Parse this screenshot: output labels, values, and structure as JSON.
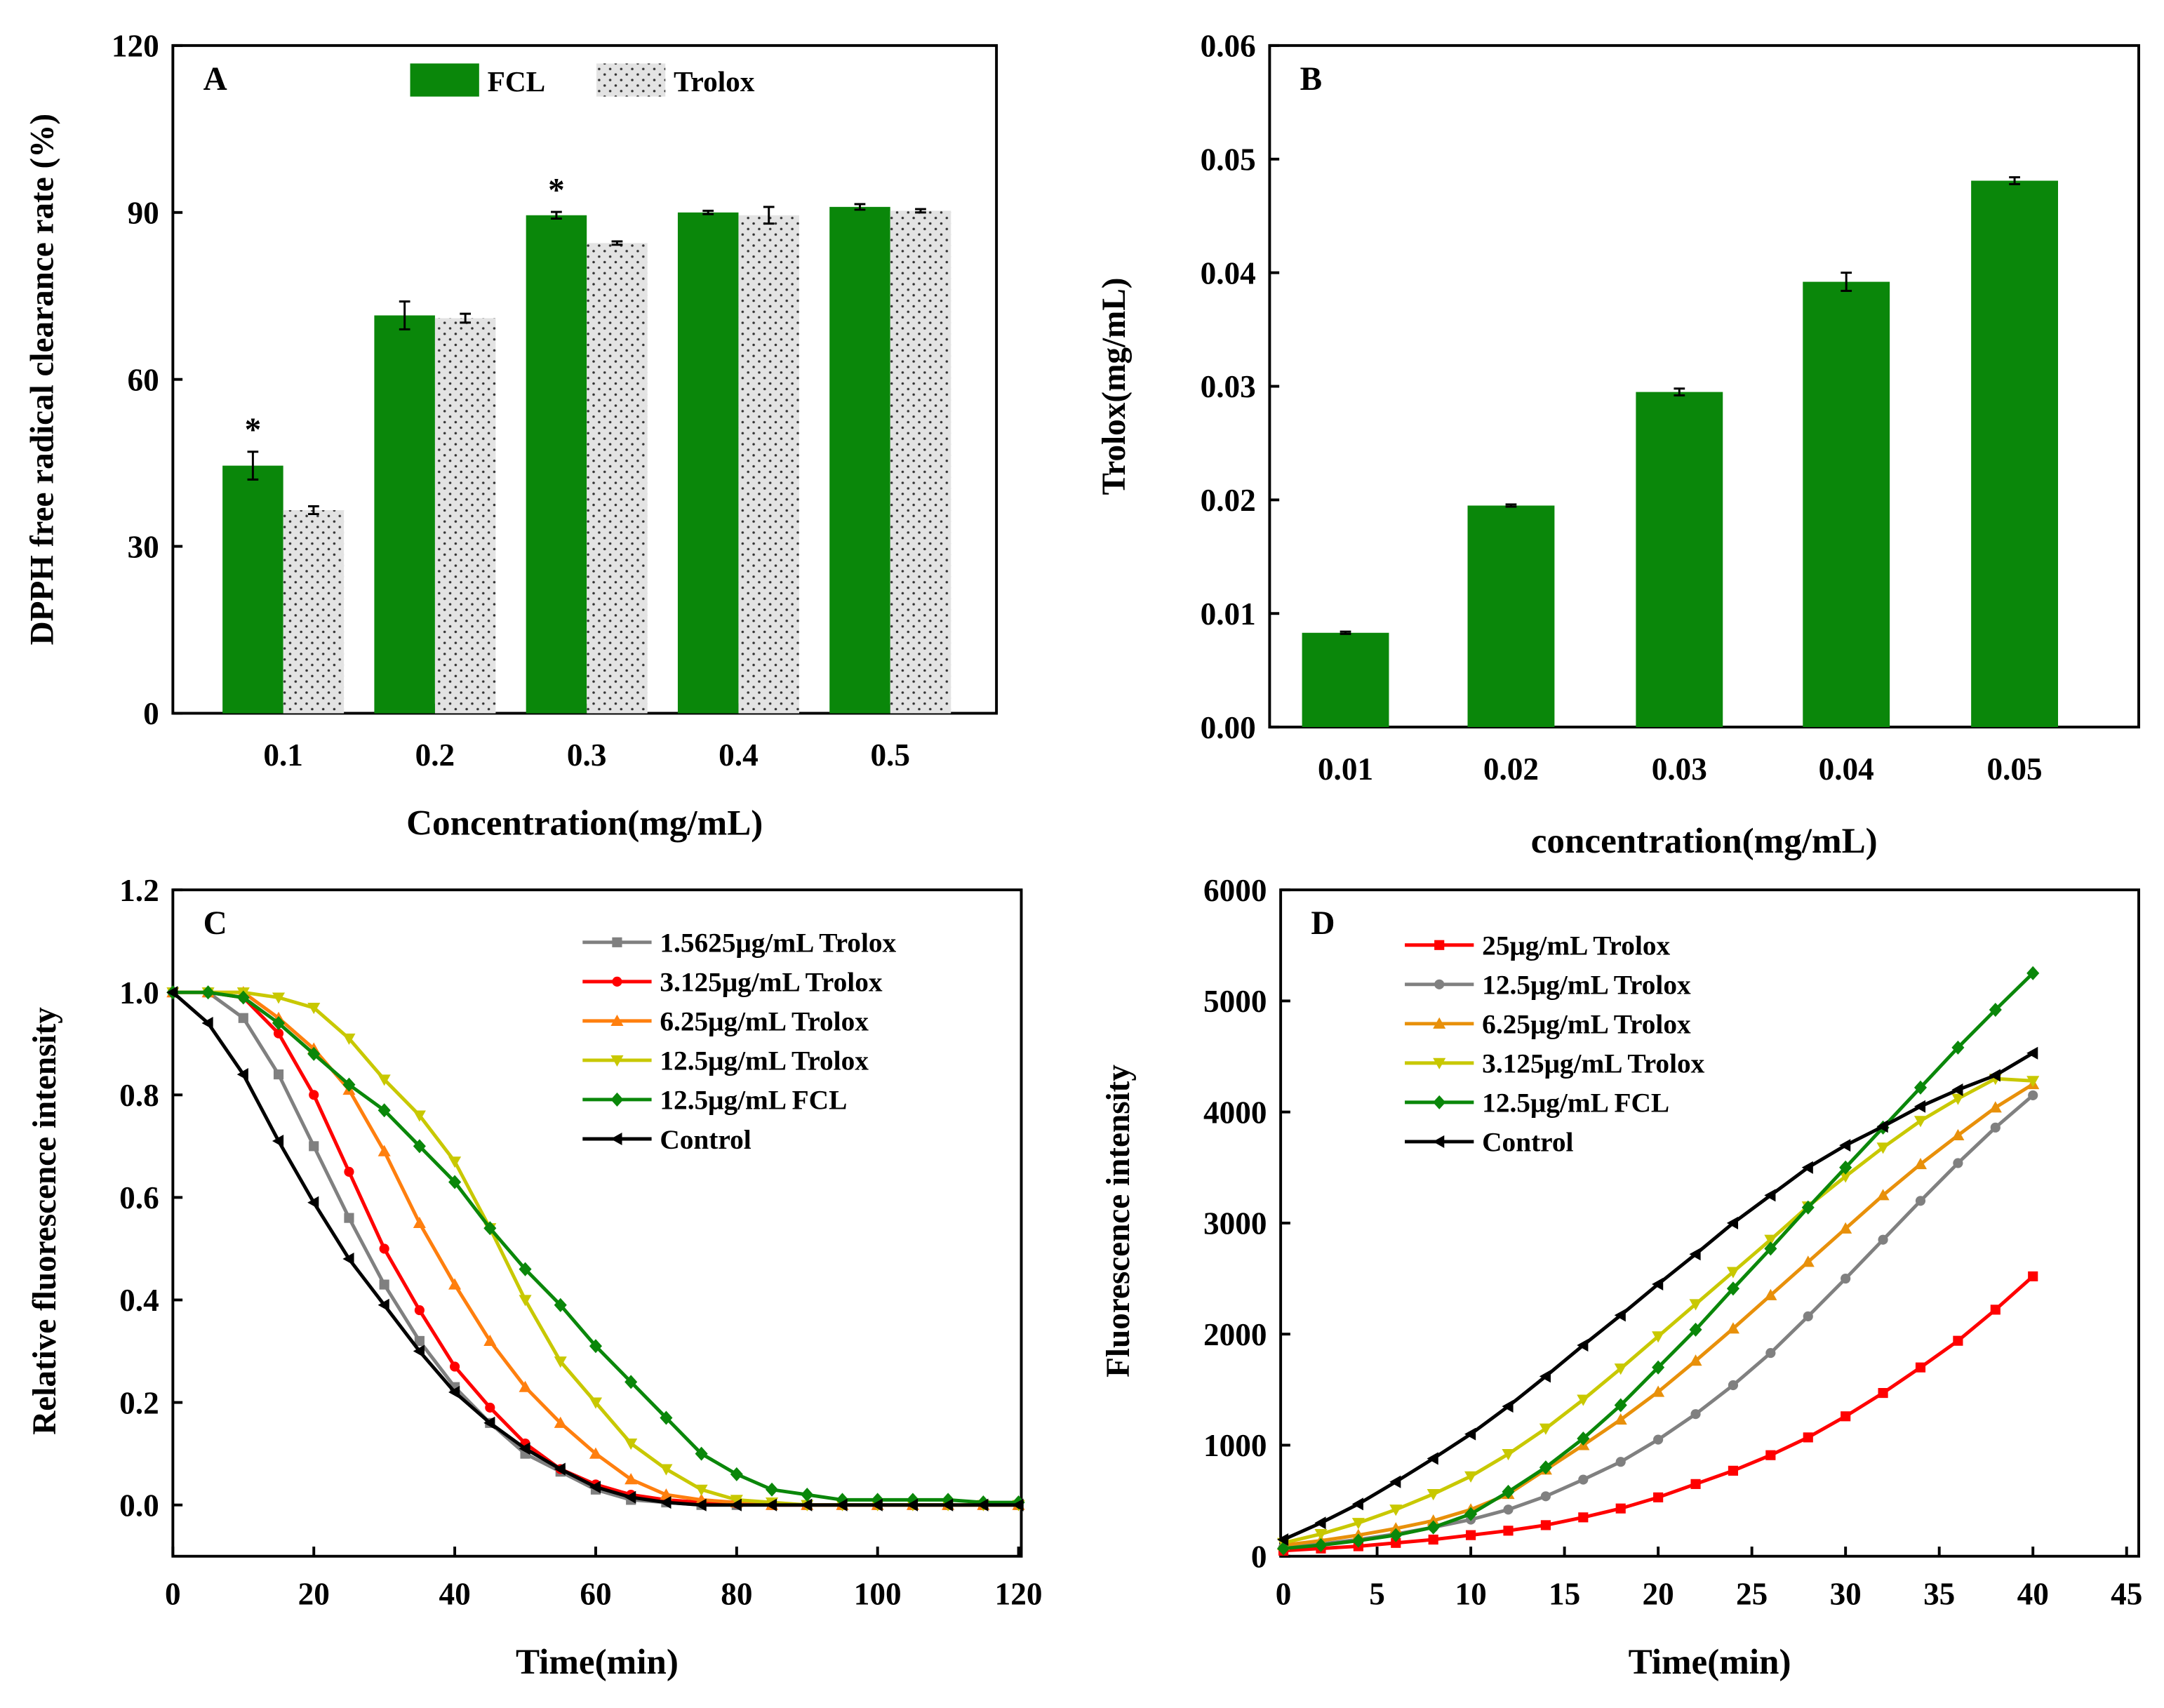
{
  "colors": {
    "fcl_bar": "#0a870a",
    "trolox_bar": "#e3e3e3"
  },
  "chart_data": [
    {
      "id": "A",
      "type": "bar",
      "panel_label": "A",
      "categories": [
        "0.1",
        "0.2",
        "0.3",
        "0.4",
        "0.5"
      ],
      "xlabel": "Concentration(mg/mL)",
      "ylabel": "DPPH free radical clearance rate (%)",
      "ylim": [
        0,
        120
      ],
      "yticks": [
        0,
        30,
        60,
        90,
        120
      ],
      "legend_position": "top-center",
      "series": [
        {
          "name": "FCL",
          "color": "#0a870a",
          "values": [
            44.5,
            71.5,
            89.5,
            90.0,
            91.0
          ],
          "errors": [
            2.5,
            2.5,
            0.6,
            0.3,
            0.5
          ]
        },
        {
          "name": "Trolox",
          "color": "#e3e3e3",
          "pattern": "dots",
          "values": [
            36.5,
            71.0,
            84.5,
            89.5,
            90.3
          ],
          "errors": [
            0.7,
            0.8,
            0.3,
            1.5,
            0.3
          ]
        }
      ],
      "annotations": [
        {
          "category": "0.1",
          "text": "*"
        },
        {
          "category": "0.3",
          "text": "*"
        }
      ]
    },
    {
      "id": "B",
      "type": "bar",
      "panel_label": "B",
      "categories": [
        "0.01",
        "0.02",
        "0.03",
        "0.04",
        "0.05"
      ],
      "xlabel": "concentration(mg/mL)",
      "ylabel": "Trolox(mg/mL)",
      "ylim": [
        0,
        0.06
      ],
      "yticks": [
        "0.00",
        "0.01",
        "0.02",
        "0.03",
        "0.04",
        "0.05",
        "0.06"
      ],
      "series": [
        {
          "name": "Trolox",
          "color": "#0a870a",
          "values": [
            0.0083,
            0.0195,
            0.0295,
            0.0392,
            0.0481
          ],
          "errors": [
            0.0001,
            0.0001,
            0.0003,
            0.0008,
            0.0003
          ]
        }
      ]
    },
    {
      "id": "C",
      "type": "line",
      "panel_label": "C",
      "xlabel": "Time(min)",
      "ylabel": "Relative fluorescence intensity",
      "xlim": [
        0,
        120
      ],
      "ylim": [
        -0.1,
        1.2
      ],
      "xticks": [
        0,
        20,
        40,
        60,
        80,
        100,
        120
      ],
      "yticks": [
        "0.0",
        "0.2",
        "0.4",
        "0.6",
        "0.8",
        "1.0",
        "1.2"
      ],
      "x_step": 5,
      "legend_position": "top-right",
      "series": [
        {
          "name": "1.5625μg/mL  Trolox",
          "color": "#808080",
          "marker": "square",
          "values": [
            1.0,
            1.0,
            0.95,
            0.84,
            0.7,
            0.56,
            0.43,
            0.32,
            0.23,
            0.16,
            0.1,
            0.065,
            0.03,
            0.01,
            0.005,
            0,
            0,
            0,
            0,
            0,
            0,
            0,
            0,
            0,
            0
          ]
        },
        {
          "name": "3.125μg/mL  Trolox",
          "color": "#ff0000",
          "marker": "circle",
          "values": [
            1.0,
            1.0,
            0.99,
            0.92,
            0.8,
            0.65,
            0.5,
            0.38,
            0.27,
            0.19,
            0.12,
            0.07,
            0.04,
            0.02,
            0.01,
            0.005,
            0.003,
            0,
            0,
            0,
            0,
            0,
            0,
            0,
            0
          ]
        },
        {
          "name": "6.25μg/mL Trolox",
          "color": "#ff7f0e",
          "marker": "triangle-up",
          "values": [
            1.0,
            1.0,
            1.0,
            0.95,
            0.89,
            0.81,
            0.69,
            0.55,
            0.43,
            0.32,
            0.23,
            0.16,
            0.1,
            0.05,
            0.02,
            0.01,
            0.005,
            0,
            0,
            0,
            0,
            0,
            0,
            0,
            0
          ]
        },
        {
          "name": "12.5μg/mL Trolox",
          "color": "#c8c800",
          "marker": "triangle-down",
          "values": [
            1.0,
            1.0,
            1.0,
            0.99,
            0.97,
            0.91,
            0.83,
            0.76,
            0.67,
            0.54,
            0.4,
            0.28,
            0.2,
            0.12,
            0.07,
            0.03,
            0.01,
            0.005,
            0,
            0,
            0,
            0,
            0,
            0,
            0
          ]
        },
        {
          "name": "12.5μg/mL FCL",
          "color": "#0a870a",
          "marker": "diamond",
          "values": [
            1.0,
            1.0,
            0.99,
            0.94,
            0.88,
            0.82,
            0.77,
            0.7,
            0.63,
            0.54,
            0.46,
            0.39,
            0.31,
            0.24,
            0.17,
            0.1,
            0.06,
            0.03,
            0.02,
            0.01,
            0.01,
            0.01,
            0.01,
            0.005,
            0.005
          ]
        },
        {
          "name": "Control",
          "color": "#000000",
          "marker": "triangle-left",
          "values": [
            1.0,
            0.94,
            0.84,
            0.71,
            0.59,
            0.48,
            0.39,
            0.3,
            0.22,
            0.16,
            0.11,
            0.07,
            0.035,
            0.015,
            0.005,
            0,
            0,
            0,
            0,
            0,
            0,
            0,
            0,
            0,
            0
          ]
        }
      ]
    },
    {
      "id": "D",
      "type": "line",
      "panel_label": "D",
      "xlabel": "Time(min)",
      "ylabel": "Fluorescence intensity",
      "xlim": [
        0,
        45.5
      ],
      "ylim": [
        0,
        6000
      ],
      "xticks": [
        0,
        5,
        10,
        15,
        20,
        25,
        30,
        35,
        40,
        45
      ],
      "yticks": [
        "0",
        "1000",
        "2000",
        "3000",
        "4000",
        "5000",
        "6000"
      ],
      "x_step": 2,
      "legend_position": "top-left",
      "series": [
        {
          "name": "25μg/mL Trolox",
          "color": "#ff0000",
          "marker": "square",
          "values": [
            50,
            70,
            90,
            120,
            150,
            190,
            230,
            280,
            350,
            430,
            530,
            650,
            770,
            910,
            1070,
            1260,
            1470,
            1700,
            1940,
            2220,
            2520
          ]
        },
        {
          "name": "12.5μg/mL Trolox",
          "color": "#808080",
          "marker": "circle",
          "values": [
            80,
            110,
            150,
            200,
            260,
            330,
            420,
            540,
            690,
            850,
            1050,
            1280,
            1540,
            1830,
            2160,
            2500,
            2850,
            3200,
            3540,
            3860,
            4150
          ]
        },
        {
          "name": "6.25μg/mL Trolox",
          "color": "#e8900a",
          "marker": "triangle-up",
          "values": [
            100,
            140,
            190,
            250,
            320,
            420,
            560,
            780,
            1000,
            1230,
            1480,
            1760,
            2050,
            2350,
            2650,
            2950,
            3250,
            3530,
            3790,
            4040,
            4250
          ]
        },
        {
          "name": "3.125μg/mL  Trolox",
          "color": "#c8c800",
          "marker": "triangle-down",
          "values": [
            120,
            200,
            300,
            420,
            560,
            720,
            920,
            1150,
            1410,
            1690,
            1980,
            2270,
            2560,
            2850,
            3150,
            3420,
            3680,
            3920,
            4120,
            4300,
            4280
          ]
        },
        {
          "name": "12.5μg/mL FCL",
          "color": "#0a870a",
          "marker": "diamond",
          "values": [
            70,
            100,
            140,
            190,
            260,
            380,
            580,
            800,
            1060,
            1360,
            1700,
            2040,
            2410,
            2770,
            3140,
            3500,
            3860,
            4220,
            4580,
            4920,
            5250
          ]
        },
        {
          "name": "Control",
          "color": "#000000",
          "marker": "triangle-left",
          "values": [
            150,
            300,
            470,
            670,
            880,
            1100,
            1350,
            1620,
            1900,
            2170,
            2450,
            2720,
            3000,
            3250,
            3500,
            3700,
            3870,
            4050,
            4200,
            4330,
            4530
          ]
        }
      ]
    }
  ]
}
